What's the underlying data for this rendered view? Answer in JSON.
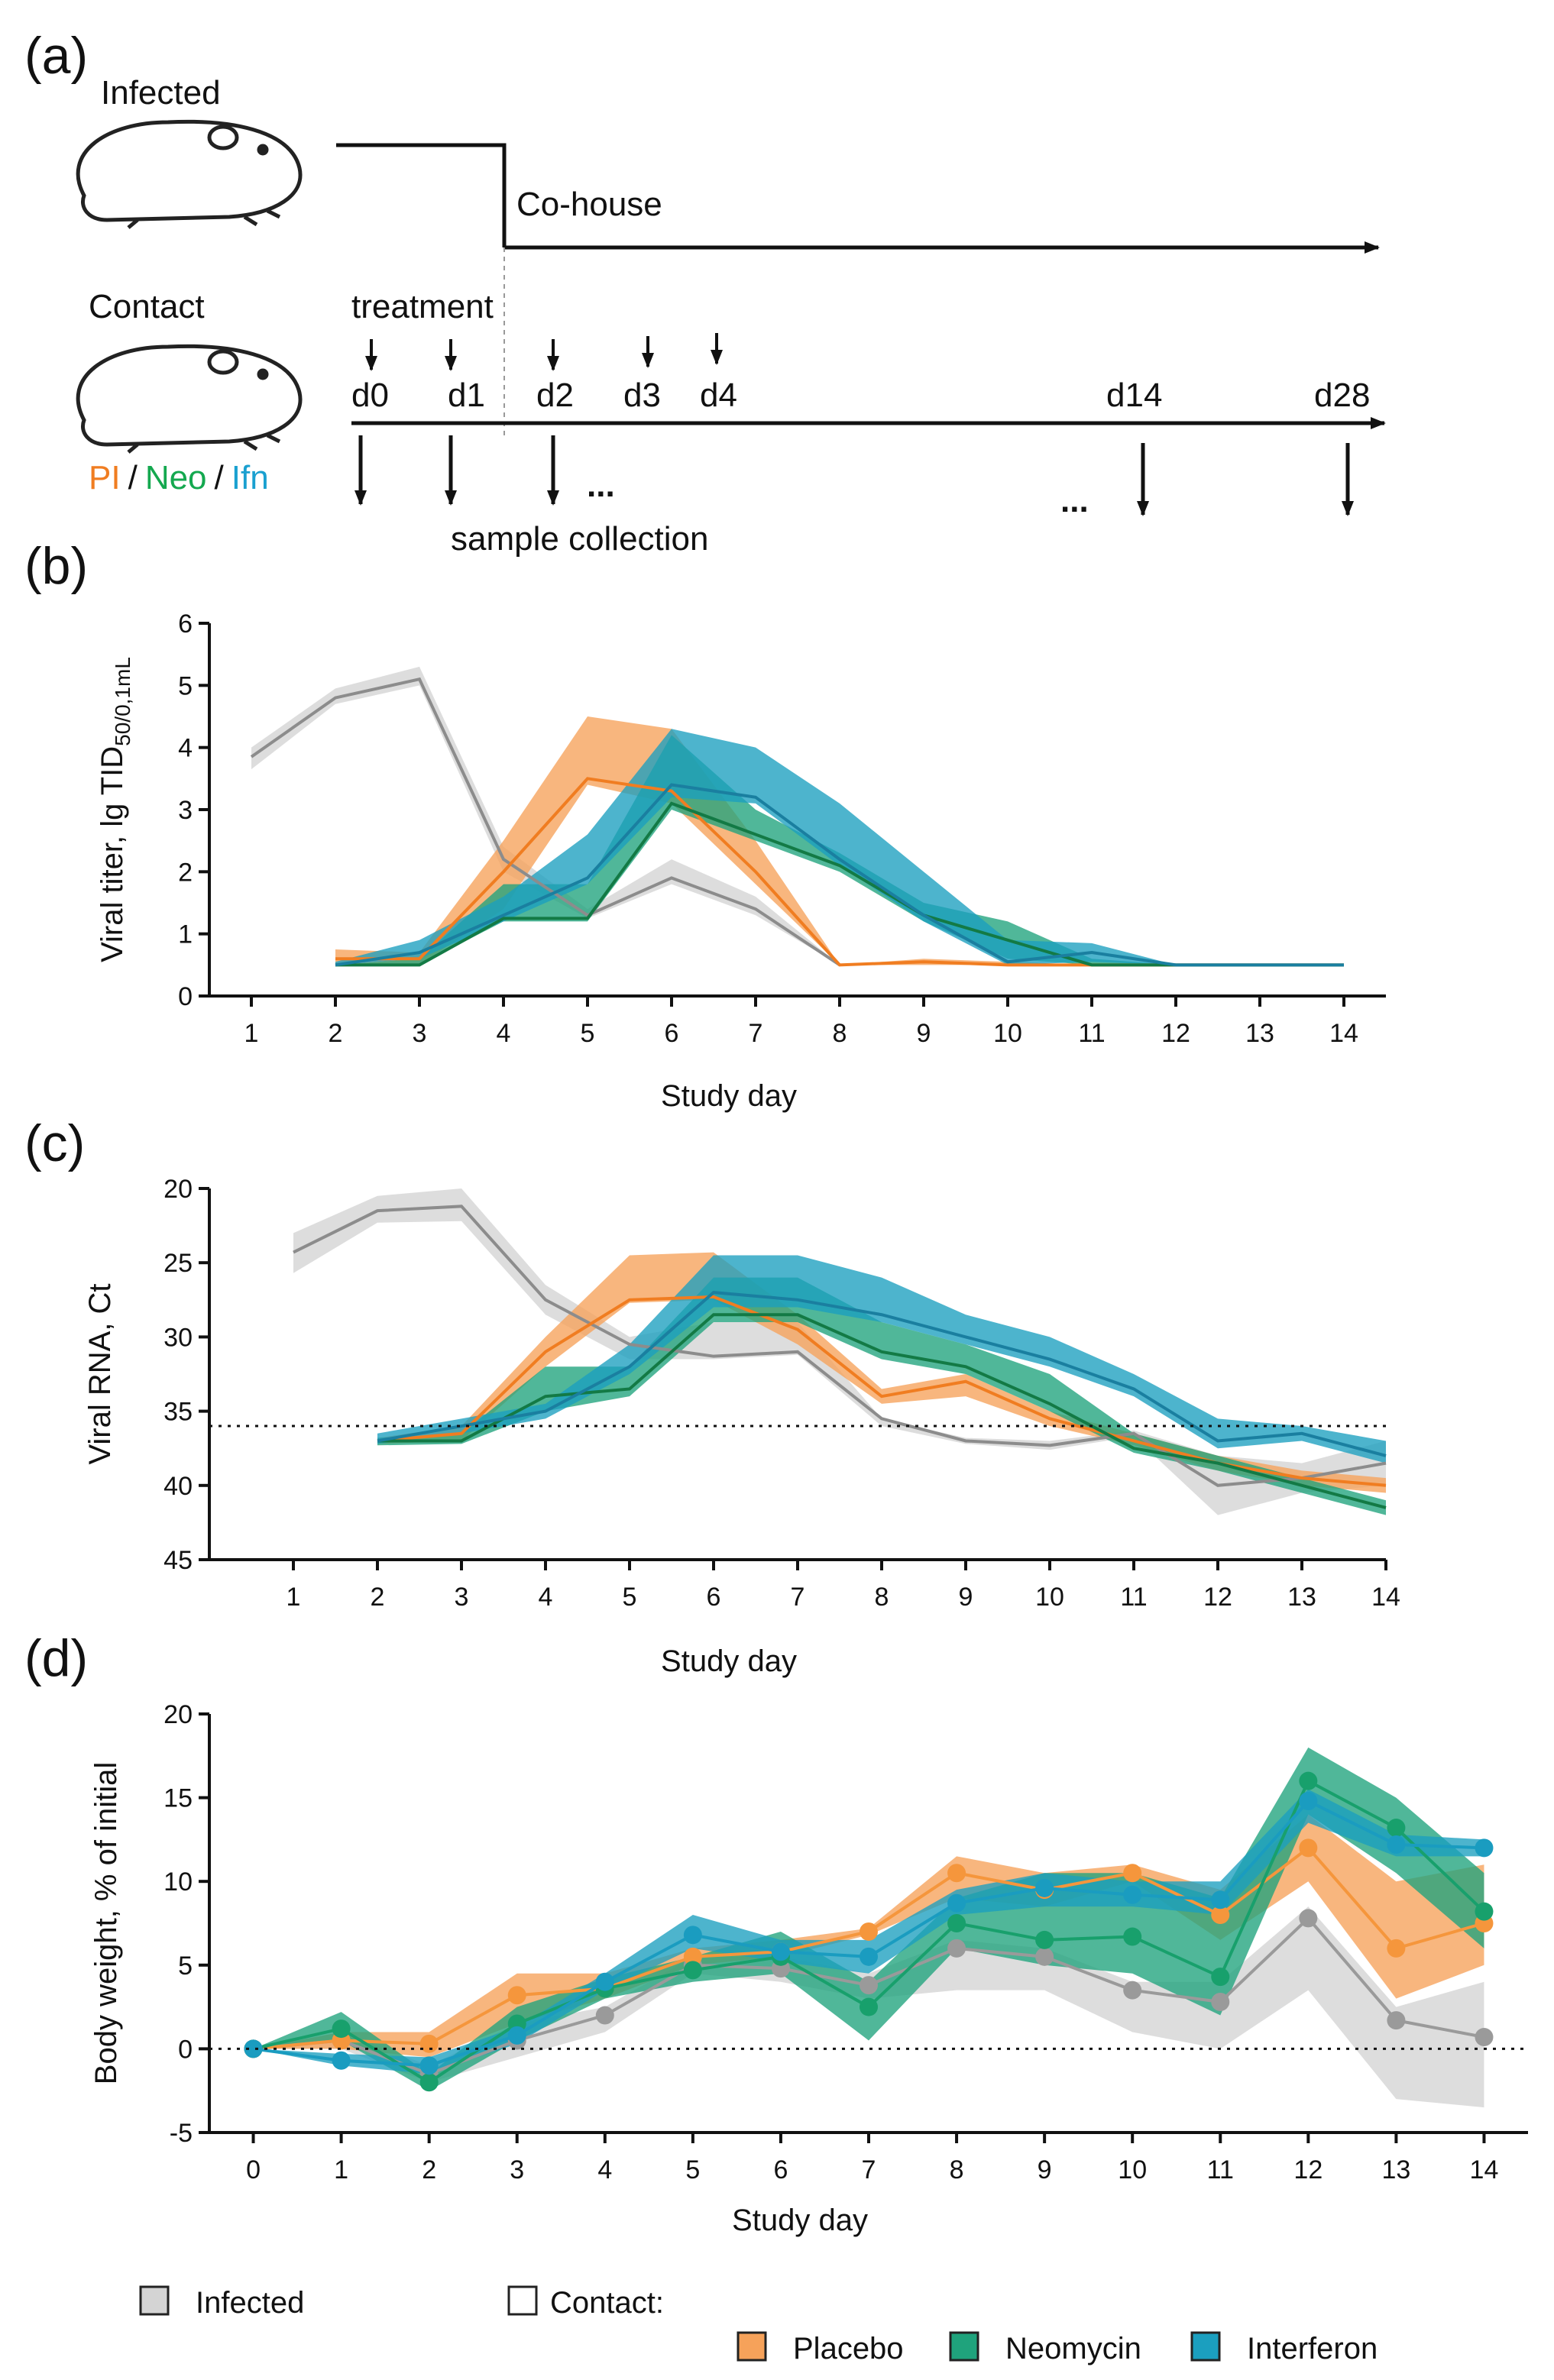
{
  "diagram": {
    "label": "(a)",
    "infected": "Infected",
    "cohouse": "Co-house",
    "contact": "Contact",
    "treatment": "treatment",
    "days": [
      "d0",
      "d1",
      "d2",
      "d3",
      "d4",
      "d14",
      "d28"
    ],
    "groups": [
      "PI",
      "Neo",
      "Ifn"
    ],
    "separator": "/",
    "ellipsis": "...",
    "sample": "sample collection"
  },
  "legend_heading": "Contact:",
  "chart_data": [
    {
      "type": "line",
      "label": "(b)",
      "xlabel": "Study day",
      "ylabel": "Viral titer, lg TID",
      "ylabel_sub": "50/0,1mL",
      "x": [
        1,
        2,
        3,
        4,
        5,
        6,
        7,
        8,
        9,
        10,
        11,
        12,
        13,
        14
      ],
      "xlim": [
        0.5,
        14.5
      ],
      "xticks": [
        1,
        2,
        3,
        4,
        5,
        6,
        7,
        8,
        9,
        10,
        11,
        12,
        13,
        14
      ],
      "ylim": [
        0,
        6
      ],
      "yticks": [
        0,
        1,
        2,
        3,
        4,
        5,
        6
      ],
      "series": [
        {
          "color": "#8c8c8c",
          "fill": "#d4d4d4",
          "values": [
            3.85,
            4.8,
            5.1,
            2.2,
            1.3,
            1.9,
            1.4,
            0.5,
            null,
            null,
            null,
            null,
            null,
            null
          ],
          "lower": [
            3.65,
            4.7,
            5.0,
            2.0,
            1.25,
            1.8,
            1.3,
            0.5,
            null,
            null,
            null,
            null,
            null,
            null
          ],
          "upper": [
            4.0,
            4.95,
            5.3,
            2.4,
            1.4,
            2.2,
            1.6,
            0.5,
            null,
            null,
            null,
            null,
            null,
            null
          ]
        },
        {
          "color": "#f07d21",
          "fill": "#f6a25a",
          "values": [
            null,
            0.6,
            0.6,
            2.0,
            3.5,
            3.3,
            2.0,
            0.5,
            0.55,
            0.5,
            0.5,
            0.5,
            0.5,
            0.5
          ],
          "lower": [
            null,
            0.5,
            0.5,
            1.4,
            3.4,
            3.1,
            1.8,
            0.5,
            0.5,
            0.5,
            0.5,
            0.5,
            0.5,
            0.5
          ],
          "upper": [
            null,
            0.75,
            0.7,
            2.5,
            4.5,
            4.3,
            2.5,
            0.5,
            0.6,
            0.55,
            0.5,
            0.5,
            0.5,
            0.5
          ]
        },
        {
          "color": "#137a45",
          "fill": "#1fa37c",
          "values": [
            null,
            0.5,
            0.5,
            1.25,
            1.25,
            3.1,
            2.6,
            2.1,
            1.3,
            0.9,
            0.5,
            0.5,
            0.5,
            0.5
          ],
          "lower": [
            null,
            0.5,
            0.5,
            1.2,
            1.2,
            3.0,
            2.5,
            2.0,
            1.2,
            0.6,
            0.5,
            0.5,
            0.5,
            0.5
          ],
          "upper": [
            null,
            0.5,
            0.6,
            1.8,
            1.8,
            4.2,
            3.0,
            2.3,
            1.5,
            1.2,
            0.6,
            0.5,
            0.5,
            0.5
          ]
        },
        {
          "color": "#1a7fa0",
          "fill": "#1b9fbf",
          "values": [
            null,
            0.5,
            0.7,
            1.3,
            1.9,
            3.4,
            3.2,
            2.2,
            1.3,
            0.55,
            0.7,
            0.5,
            0.5,
            0.5
          ],
          "lower": [
            null,
            0.5,
            0.6,
            1.2,
            1.8,
            3.2,
            3.1,
            2.1,
            1.2,
            0.5,
            0.55,
            0.5,
            0.5,
            0.5
          ],
          "upper": [
            null,
            0.55,
            0.9,
            1.6,
            2.6,
            4.3,
            4.0,
            3.1,
            2.0,
            0.9,
            0.85,
            0.5,
            0.5,
            0.5
          ]
        }
      ]
    },
    {
      "type": "line",
      "label": "(c)",
      "xlabel": "Study day",
      "ylabel": "Viral RNA, Ct",
      "x": [
        1,
        2,
        3,
        4,
        5,
        6,
        7,
        8,
        9,
        10,
        11,
        12,
        13,
        14
      ],
      "xlim": [
        0,
        14
      ],
      "xticks": [
        1,
        2,
        3,
        4,
        5,
        6,
        7,
        8,
        9,
        10,
        11,
        12,
        13,
        14
      ],
      "ylim": [
        45,
        20
      ],
      "yticks": [
        20,
        25,
        30,
        35,
        40,
        45
      ],
      "refline": 36,
      "series": [
        {
          "color": "#8c8c8c",
          "fill": "#d4d4d4",
          "values": [
            24.3,
            21.5,
            21.2,
            27.5,
            30.5,
            31.3,
            31,
            35.5,
            37,
            37.3,
            36.5,
            40,
            39.5,
            38.5
          ],
          "lower": [
            23,
            20.5,
            20,
            26.5,
            30,
            29,
            29,
            35.5,
            36.8,
            37,
            36.3,
            38,
            38.5,
            37
          ],
          "upper": [
            25.7,
            22.3,
            22.2,
            28.5,
            31.5,
            31.5,
            31.2,
            36,
            37.2,
            37.6,
            36.7,
            42,
            40.5,
            40
          ]
        },
        {
          "color": "#f07d21",
          "fill": "#f6a25a",
          "values": [
            null,
            37,
            36.5,
            31,
            27.5,
            27.3,
            29.5,
            34,
            33,
            35.5,
            37,
            38.5,
            39.5,
            40
          ],
          "lower": [
            null,
            36.8,
            36,
            30,
            24.5,
            24.3,
            28.5,
            33.5,
            32.5,
            35,
            36.5,
            38,
            39,
            39.5
          ],
          "upper": [
            null,
            37.2,
            37,
            32,
            27.7,
            27.5,
            30.5,
            34.5,
            34,
            36,
            37.3,
            39,
            40,
            40.5
          ]
        },
        {
          "color": "#137a45",
          "fill": "#1fa37c",
          "values": [
            null,
            37,
            37,
            34,
            33.5,
            28.5,
            28.5,
            31,
            32,
            34.5,
            37.5,
            38.5,
            40,
            41.5
          ],
          "lower": [
            null,
            36.8,
            36.5,
            32,
            32,
            26,
            26,
            29,
            30.5,
            32.5,
            36.5,
            38,
            39.5,
            41
          ],
          "upper": [
            null,
            37.3,
            37.2,
            35,
            34,
            29,
            29,
            31.5,
            32.5,
            35,
            37.8,
            39,
            40.5,
            42
          ]
        },
        {
          "color": "#1a7fa0",
          "fill": "#1b9fbf",
          "values": [
            null,
            37,
            36,
            35,
            32,
            27,
            27.5,
            28.5,
            30,
            31.5,
            33.5,
            37,
            36.5,
            38
          ],
          "lower": [
            null,
            36.5,
            35.5,
            34.5,
            30.5,
            24.5,
            24.5,
            26,
            28.5,
            30,
            32.5,
            35.5,
            36,
            37
          ],
          "upper": [
            null,
            37.2,
            36.5,
            35.5,
            32.5,
            28,
            28,
            29,
            30.5,
            32,
            34,
            37.5,
            37,
            38.5
          ]
        }
      ]
    },
    {
      "type": "line",
      "label": "(d)",
      "xlabel": "Study day",
      "ylabel": "Body weight, % of initial",
      "markers": true,
      "x": [
        0,
        1,
        2,
        3,
        4,
        5,
        6,
        7,
        8,
        9,
        10,
        11,
        12,
        13,
        14
      ],
      "xlim": [
        -0.5,
        14.5
      ],
      "xticks": [
        0,
        1,
        2,
        3,
        4,
        5,
        6,
        7,
        8,
        9,
        10,
        11,
        12,
        13,
        14
      ],
      "ylim": [
        -5,
        20
      ],
      "yticks": [
        -5,
        0,
        5,
        10,
        15,
        20
      ],
      "refline": 0,
      "series": [
        {
          "name": "Infected",
          "color": "#9a9a9a",
          "fill": "#d4d4d4",
          "values": [
            0,
            0.5,
            -1.5,
            0.5,
            2,
            5,
            4.8,
            3.8,
            6,
            5.5,
            3.5,
            2.8,
            7.8,
            1.7,
            0.7
          ],
          "lower": [
            0,
            0,
            -2,
            -0.5,
            1,
            4.5,
            4,
            3,
            3.5,
            3.5,
            1,
            0,
            3.5,
            -3,
            -3.5
          ],
          "upper": [
            0,
            1,
            -1,
            1.5,
            2.5,
            5.5,
            5.5,
            4.5,
            6.5,
            6,
            4,
            4,
            8.5,
            2.5,
            4
          ]
        },
        {
          "name": "Placebo",
          "color": "#f5963c",
          "fill": "#f6a25a",
          "values": [
            0,
            0.5,
            0.3,
            3.2,
            3.6,
            5.5,
            5.8,
            7,
            10.5,
            9.5,
            10.5,
            8,
            12,
            6,
            7.5
          ],
          "lower": [
            0,
            0,
            -0.5,
            1.5,
            3,
            5,
            5.5,
            6.8,
            9,
            8.5,
            10,
            6.5,
            10,
            3,
            5
          ],
          "upper": [
            0,
            1,
            1,
            4.5,
            4.5,
            6,
            6.5,
            7.2,
            11.5,
            10.5,
            11,
            9.5,
            14,
            10,
            11
          ]
        },
        {
          "name": "Neomycin",
          "color": "#18a06c",
          "fill": "#1fa37c",
          "values": [
            0,
            1.2,
            -2,
            1.5,
            3.6,
            4.7,
            5.5,
            2.5,
            7.5,
            6.5,
            6.7,
            4.3,
            16,
            13.2,
            8.2
          ],
          "lower": [
            0,
            0.5,
            -2.5,
            0.5,
            3,
            4,
            4.5,
            0.5,
            6,
            5,
            4.5,
            2,
            14,
            10.5,
            6
          ],
          "upper": [
            0,
            2.2,
            -1.5,
            2.5,
            4.2,
            5.5,
            7,
            4,
            9,
            10.5,
            10.5,
            9,
            18,
            15,
            10.5
          ]
        },
        {
          "name": "Interferon",
          "color": "#1a9cc0",
          "fill": "#1b9fbf",
          "values": [
            0,
            -0.7,
            -1,
            0.8,
            4,
            6.8,
            5.8,
            5.5,
            8.7,
            9.6,
            9.2,
            8.9,
            14.8,
            12.2,
            12
          ],
          "lower": [
            0,
            -1,
            -1.5,
            0.3,
            3.5,
            6,
            5.2,
            4.5,
            8,
            8.5,
            8.5,
            8,
            13.5,
            11.5,
            11.5
          ],
          "upper": [
            0,
            -0.3,
            -0.5,
            1.3,
            4.5,
            8,
            6.5,
            6.5,
            9.5,
            10.5,
            10,
            10,
            15.5,
            12.8,
            12.5
          ]
        }
      ]
    }
  ]
}
